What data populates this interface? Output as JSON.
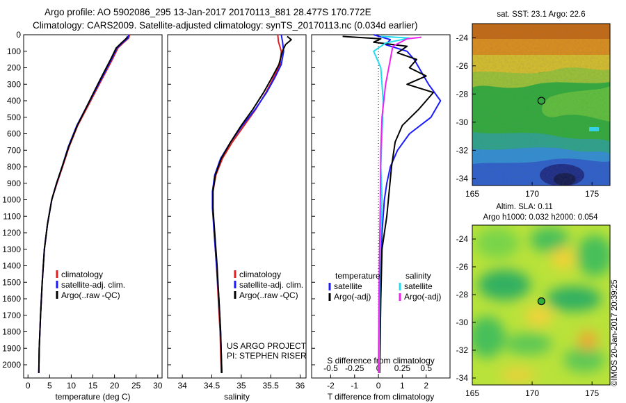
{
  "header": {
    "line1": "Argo profile: AO 5902086_295 13-Jan-2017 20170113_881 28.477S 170.772E",
    "line2": "Climatology: CARS2009. Satellite-adjusted climatology: synTS_20170113.nc (0.034d earlier)"
  },
  "stamp": "©IMOS 20-Jan-2017 20:39:25",
  "colors": {
    "climatology": "#e02020",
    "satellite": "#1a1aff",
    "argo": "#000000",
    "salinity_satellite": "#22ddee",
    "salinity_argo": "#ee22ee"
  },
  "chart_data": [
    {
      "type": "line",
      "id": "temperature_profile",
      "xlabel": "temperature (deg C)",
      "xlim": [
        -1,
        31
      ],
      "ylim": [
        0,
        2080
      ],
      "xticks": [
        0,
        5,
        10,
        15,
        20,
        25,
        30
      ],
      "yticks": [
        0,
        100,
        200,
        300,
        400,
        500,
        600,
        700,
        800,
        900,
        1000,
        1100,
        1200,
        1300,
        1400,
        1500,
        1600,
        1700,
        1800,
        1900,
        2000
      ],
      "legend": [
        "climatology",
        "satellite-adj. clim.",
        "Argo(..raw -QC)"
      ],
      "series": [
        {
          "name": "climatology",
          "color": "#e02020",
          "points": [
            [
              23.5,
              0
            ],
            [
              23.3,
              20
            ],
            [
              22,
              50
            ],
            [
              20.8,
              80
            ],
            [
              19.5,
              150
            ],
            [
              17.5,
              250
            ],
            [
              15.5,
              350
            ],
            [
              13.5,
              450
            ],
            [
              11.5,
              550
            ],
            [
              9.5,
              680
            ],
            [
              8,
              800
            ],
            [
              6.7,
              900
            ],
            [
              5.5,
              1000
            ],
            [
              4.5,
              1150
            ],
            [
              3.8,
              1300
            ],
            [
              3.3,
              1500
            ],
            [
              2.9,
              1700
            ],
            [
              2.6,
              1900
            ],
            [
              2.5,
              2050
            ]
          ]
        },
        {
          "name": "satellite-adj. clim.",
          "color": "#1a1aff",
          "points": [
            [
              23.3,
              0
            ],
            [
              23.1,
              20
            ],
            [
              21.8,
              50
            ],
            [
              20.6,
              80
            ],
            [
              19.3,
              150
            ],
            [
              17.3,
              250
            ],
            [
              15.3,
              350
            ],
            [
              13.3,
              450
            ],
            [
              11.3,
              550
            ],
            [
              9.3,
              680
            ],
            [
              7.9,
              800
            ],
            [
              6.6,
              900
            ],
            [
              5.5,
              1000
            ],
            [
              4.5,
              1150
            ],
            [
              3.8,
              1300
            ],
            [
              3.3,
              1500
            ],
            [
              2.9,
              1700
            ],
            [
              2.6,
              1900
            ],
            [
              2.5,
              2050
            ]
          ]
        },
        {
          "name": "Argo(..raw -QC)",
          "color": "#000000",
          "points": [
            [
              23.0,
              10
            ],
            [
              22.8,
              20
            ],
            [
              21.6,
              50
            ],
            [
              20.4,
              80
            ],
            [
              19.1,
              150
            ],
            [
              17.1,
              250
            ],
            [
              15.2,
              350
            ],
            [
              13.3,
              450
            ],
            [
              11.4,
              550
            ],
            [
              9.4,
              680
            ],
            [
              7.9,
              800
            ],
            [
              6.6,
              900
            ],
            [
              5.5,
              1000
            ],
            [
              4.5,
              1150
            ],
            [
              3.8,
              1300
            ],
            [
              3.3,
              1500
            ],
            [
              2.9,
              1700
            ],
            [
              2.6,
              1900
            ],
            [
              2.5,
              2050
            ]
          ]
        }
      ]
    },
    {
      "type": "line",
      "id": "salinity_profile",
      "xlabel": "salinity",
      "xlim": [
        33.75,
        36.1
      ],
      "ylim": [
        0,
        2080
      ],
      "xticks": [
        34,
        34.5,
        35,
        35.5,
        36
      ],
      "legend": [
        "climatology",
        "satellite-adj. clim.",
        "Argo(..raw -QC)"
      ],
      "annotation": [
        "US ARGO PROJECT",
        "PI: STEPHEN RISER"
      ],
      "series": [
        {
          "name": "climatology",
          "color": "#e02020",
          "points": [
            [
              35.62,
              0
            ],
            [
              35.63,
              40
            ],
            [
              35.68,
              100
            ],
            [
              35.66,
              180
            ],
            [
              35.55,
              260
            ],
            [
              35.42,
              350
            ],
            [
              35.25,
              450
            ],
            [
              35.05,
              550
            ],
            [
              34.85,
              650
            ],
            [
              34.68,
              750
            ],
            [
              34.57,
              850
            ],
            [
              34.52,
              950
            ],
            [
              34.52,
              1050
            ],
            [
              34.54,
              1200
            ],
            [
              34.58,
              1400
            ],
            [
              34.61,
              1600
            ],
            [
              34.64,
              1800
            ],
            [
              34.66,
              2050
            ]
          ]
        },
        {
          "name": "satellite-adj. clim.",
          "color": "#1a1aff",
          "points": [
            [
              35.68,
              0
            ],
            [
              35.7,
              40
            ],
            [
              35.72,
              100
            ],
            [
              35.68,
              180
            ],
            [
              35.57,
              260
            ],
            [
              35.43,
              350
            ],
            [
              35.24,
              450
            ],
            [
              35.02,
              550
            ],
            [
              34.82,
              650
            ],
            [
              34.65,
              750
            ],
            [
              34.55,
              850
            ],
            [
              34.51,
              950
            ],
            [
              34.51,
              1050
            ],
            [
              34.54,
              1200
            ],
            [
              34.58,
              1400
            ],
            [
              34.62,
              1600
            ],
            [
              34.65,
              1800
            ],
            [
              34.67,
              2050
            ]
          ]
        },
        {
          "name": "Argo(..raw -QC)",
          "color": "#000000",
          "points": [
            [
              35.78,
              10
            ],
            [
              35.85,
              30
            ],
            [
              35.75,
              60
            ],
            [
              35.7,
              100
            ],
            [
              35.64,
              180
            ],
            [
              35.52,
              260
            ],
            [
              35.38,
              350
            ],
            [
              35.2,
              450
            ],
            [
              35.0,
              550
            ],
            [
              34.82,
              650
            ],
            [
              34.66,
              750
            ],
            [
              34.56,
              850
            ],
            [
              34.52,
              950
            ],
            [
              34.52,
              1050
            ],
            [
              34.55,
              1200
            ],
            [
              34.59,
              1400
            ],
            [
              34.62,
              1600
            ],
            [
              34.65,
              1800
            ],
            [
              34.67,
              2050
            ]
          ]
        }
      ]
    },
    {
      "type": "line",
      "id": "difference_profile",
      "xlabel": "T difference from climatology",
      "xlabel_top": "S difference from climatology",
      "xlim": [
        -2.8,
        3.0
      ],
      "ylim": [
        0,
        2080
      ],
      "xticks_bottom": [
        -2,
        -1,
        0,
        1,
        2
      ],
      "xticks_top": [
        "-0.5",
        "-0.25",
        "0",
        "0.25",
        "0.5"
      ],
      "legend": {
        "temperature": {
          "label": "temperature",
          "items": [
            "satellite",
            "Argo(-adj)"
          ]
        },
        "salinity": {
          "label": "salinity",
          "items": [
            "satellite",
            "Argo(-adj)"
          ]
        }
      },
      "series": [
        {
          "name": "temperature satellite",
          "color": "#1a1aff",
          "points": [
            [
              -0.2,
              0
            ],
            [
              0.5,
              30
            ],
            [
              0.3,
              60
            ],
            [
              1.2,
              100
            ],
            [
              1.5,
              150
            ],
            [
              1.7,
              200
            ],
            [
              2.1,
              300
            ],
            [
              2.6,
              400
            ],
            [
              2.2,
              500
            ],
            [
              1.3,
              600
            ],
            [
              0.8,
              700
            ],
            [
              0.5,
              800
            ],
            [
              0.35,
              900
            ],
            [
              0.25,
              1000
            ],
            [
              0.15,
              1200
            ],
            [
              0.1,
              1500
            ],
            [
              0.05,
              1800
            ],
            [
              0.02,
              2050
            ]
          ]
        },
        {
          "name": "temperature Argo(-adj)",
          "color": "#000000",
          "points": [
            [
              -1.5,
              10
            ],
            [
              0.1,
              25
            ],
            [
              -0.2,
              45
            ],
            [
              1.2,
              70
            ],
            [
              0.8,
              110
            ],
            [
              1.6,
              150
            ],
            [
              1.3,
              200
            ],
            [
              2.0,
              250
            ],
            [
              1.2,
              300
            ],
            [
              2.3,
              350
            ],
            [
              1.7,
              450
            ],
            [
              1.0,
              550
            ],
            [
              0.7,
              650
            ],
            [
              0.55,
              800
            ],
            [
              0.45,
              950
            ],
            [
              0.35,
              1100
            ],
            [
              0.15,
              1300
            ],
            [
              0.1,
              1600
            ],
            [
              0.05,
              2050
            ]
          ]
        },
        {
          "name": "salinity satellite",
          "color": "#22ddee",
          "points": [
            [
              0.1,
              10
            ],
            [
              1.3,
              20
            ],
            [
              0.3,
              50
            ],
            [
              -0.2,
              100
            ],
            [
              0.1,
              200
            ],
            [
              0.2,
              400
            ],
            [
              0.15,
              600
            ],
            [
              0.1,
              800
            ],
            [
              0.15,
              1000
            ],
            [
              0.1,
              1200
            ],
            [
              0.05,
              1500
            ],
            [
              0.02,
              2050
            ]
          ]
        },
        {
          "name": "salinity Argo(-adj)",
          "color": "#ee22ee",
          "points": [
            [
              1.8,
              15
            ],
            [
              1.2,
              25
            ],
            [
              0.6,
              70
            ],
            [
              0.5,
              150
            ],
            [
              0.3,
              300
            ],
            [
              0.15,
              500
            ],
            [
              0.1,
              700
            ],
            [
              0.08,
              1000
            ],
            [
              0.05,
              1300
            ],
            [
              0.02,
              1600
            ],
            [
              0.0,
              2050
            ]
          ]
        }
      ]
    },
    {
      "type": "heatmap",
      "id": "sst_map",
      "title": "sat. SST: 23.1  Argo: 22.6",
      "xlim": [
        165,
        176.5
      ],
      "ylim": [
        -34.5,
        -23
      ],
      "xticks": [
        165,
        170,
        175
      ],
      "yticks": [
        -24,
        -26,
        -28,
        -30,
        -32,
        -34
      ],
      "marker": [
        170.772,
        -28.477
      ]
    },
    {
      "type": "heatmap",
      "id": "sla_map",
      "title_line1": "Altim. SLA: 0.11",
      "title_line2": "Argo h1000: 0.032 h2000: 0.054",
      "xlim": [
        165,
        176.5
      ],
      "ylim": [
        -34.5,
        -23
      ],
      "xticks": [
        165,
        170,
        175
      ],
      "yticks": [
        -24,
        -26,
        -28,
        -30,
        -32,
        -34
      ],
      "marker": [
        170.772,
        -28.477
      ]
    }
  ]
}
